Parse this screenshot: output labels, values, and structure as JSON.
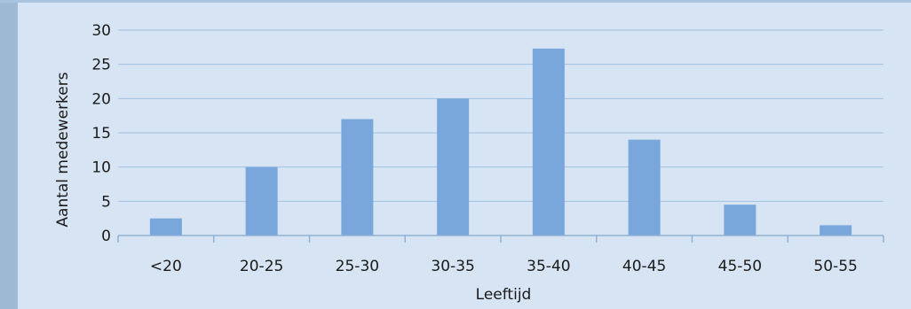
{
  "chart_data": {
    "type": "bar",
    "title": "",
    "xlabel": "Leeftijd",
    "ylabel": "Aantal medewerkers",
    "categories": [
      "<20",
      "20-25",
      "25-30",
      "30-35",
      "35-40",
      "40-45",
      "45-50",
      "50-55"
    ],
    "values": [
      2.5,
      10,
      17,
      20,
      27.3,
      14,
      4.5,
      1.5
    ],
    "ylim": [
      0,
      30
    ],
    "yticks": [
      "0",
      "5",
      "10",
      "15",
      "20",
      "25",
      "30"
    ],
    "grid": true,
    "legend": "none",
    "colors": {
      "bar": "#7aa7db",
      "grid": "#9fc0e2",
      "axis": "#8fb2d6",
      "background": "#d6e4f3"
    }
  }
}
